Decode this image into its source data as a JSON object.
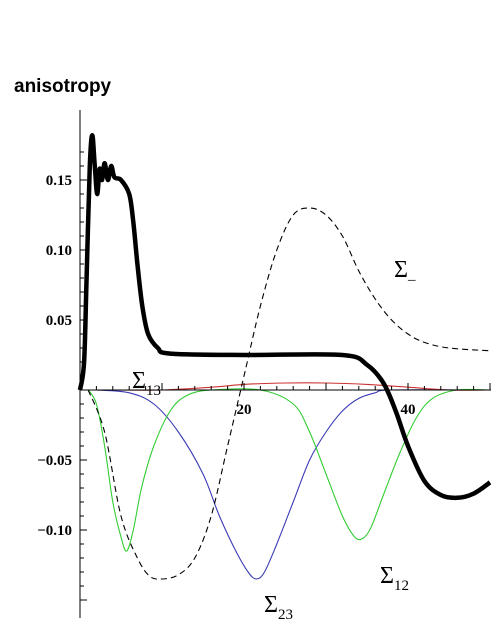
{
  "chart_data": {
    "type": "line",
    "title": "",
    "xlabel": "",
    "ylabel": "anisotropy",
    "xlim": [
      0,
      50
    ],
    "ylim": [
      -0.155,
      0.185
    ],
    "x_ticks": [
      20,
      40
    ],
    "y_ticks": [
      0.15,
      0.1,
      0.05,
      -0.05,
      -0.1
    ],
    "x_tick_labels": [
      "20",
      "40"
    ],
    "y_tick_labels": [
      "0.15",
      "0.10",
      "0.05",
      "−0.05",
      "−0.10"
    ],
    "grid": false,
    "series": [
      {
        "name": "",
        "color": "#000000",
        "style": "solid-thick",
        "points": [
          [
            0,
            0
          ],
          [
            0.5,
            0.02
          ],
          [
            0.8,
            0.08
          ],
          [
            1.2,
            0.16
          ],
          [
            1.5,
            0.182
          ],
          [
            1.8,
            0.16
          ],
          [
            2.1,
            0.14
          ],
          [
            2.4,
            0.158
          ],
          [
            2.7,
            0.15
          ],
          [
            3.0,
            0.162
          ],
          [
            3.4,
            0.15
          ],
          [
            3.8,
            0.16
          ],
          [
            4.2,
            0.152
          ],
          [
            5,
            0.15
          ],
          [
            6,
            0.14
          ],
          [
            6.5,
            0.12
          ],
          [
            7,
            0.09
          ],
          [
            7.6,
            0.06
          ],
          [
            8.3,
            0.04
          ],
          [
            9.5,
            0.03
          ],
          [
            11,
            0.026
          ],
          [
            20,
            0.025
          ],
          [
            32,
            0.025
          ],
          [
            35,
            0.018
          ],
          [
            37,
            0.005
          ],
          [
            38.5,
            -0.015
          ],
          [
            40,
            -0.04
          ],
          [
            42,
            -0.065
          ],
          [
            44,
            -0.075
          ],
          [
            46,
            -0.077
          ],
          [
            48,
            -0.074
          ],
          [
            50,
            -0.066
          ]
        ]
      },
      {
        "name": "Σ_",
        "color": "#000000",
        "style": "dashed",
        "points": [
          [
            1,
            0
          ],
          [
            3,
            -0.03
          ],
          [
            5,
            -0.09
          ],
          [
            7,
            -0.12
          ],
          [
            8.5,
            -0.133
          ],
          [
            10,
            -0.135
          ],
          [
            12,
            -0.132
          ],
          [
            14,
            -0.12
          ],
          [
            16,
            -0.09
          ],
          [
            18,
            -0.04
          ],
          [
            20,
            0.01
          ],
          [
            22,
            0.06
          ],
          [
            24,
            0.1
          ],
          [
            26,
            0.125
          ],
          [
            28,
            0.13
          ],
          [
            30,
            0.125
          ],
          [
            32,
            0.11
          ],
          [
            34,
            0.085
          ],
          [
            36,
            0.065
          ],
          [
            38,
            0.05
          ],
          [
            40,
            0.04
          ],
          [
            42,
            0.034
          ],
          [
            45,
            0.03
          ],
          [
            50,
            0.028
          ]
        ]
      },
      {
        "name": "Σ_13",
        "color": "#cc3333",
        "style": "solid",
        "points": [
          [
            4,
            0
          ],
          [
            10,
            0
          ],
          [
            16,
            0.002
          ],
          [
            20,
            0.004
          ],
          [
            25,
            0.005
          ],
          [
            30,
            0.005
          ],
          [
            35,
            0.004
          ],
          [
            40,
            0.002
          ],
          [
            45,
            0
          ],
          [
            50,
            0
          ]
        ]
      },
      {
        "name": "Σ_23",
        "color": "#3b3bb5",
        "style": "solid",
        "points": [
          [
            2,
            0
          ],
          [
            6,
            -0.002
          ],
          [
            9,
            -0.01
          ],
          [
            12,
            -0.03
          ],
          [
            15,
            -0.06
          ],
          [
            17,
            -0.09
          ],
          [
            19,
            -0.115
          ],
          [
            20.5,
            -0.13
          ],
          [
            21.5,
            -0.135
          ],
          [
            22.5,
            -0.13
          ],
          [
            24,
            -0.11
          ],
          [
            26,
            -0.08
          ],
          [
            28,
            -0.05
          ],
          [
            30,
            -0.03
          ],
          [
            32,
            -0.015
          ],
          [
            34,
            -0.006
          ],
          [
            36,
            -0.002
          ],
          [
            38,
            0
          ],
          [
            50,
            0
          ]
        ]
      },
      {
        "name": "Σ_12",
        "color": "#33cc33",
        "style": "solid",
        "points": [
          [
            1,
            0
          ],
          [
            2,
            -0.01
          ],
          [
            3,
            -0.04
          ],
          [
            4,
            -0.08
          ],
          [
            5,
            -0.105
          ],
          [
            5.7,
            -0.115
          ],
          [
            6.5,
            -0.1
          ],
          [
            7.5,
            -0.07
          ],
          [
            9,
            -0.04
          ],
          [
            11,
            -0.015
          ],
          [
            13,
            -0.004
          ],
          [
            16,
            0
          ],
          [
            22,
            0
          ],
          [
            26,
            -0.01
          ],
          [
            28,
            -0.03
          ],
          [
            30,
            -0.06
          ],
          [
            32,
            -0.09
          ],
          [
            33.5,
            -0.105
          ],
          [
            34.5,
            -0.106
          ],
          [
            35.5,
            -0.098
          ],
          [
            37,
            -0.075
          ],
          [
            39,
            -0.045
          ],
          [
            41,
            -0.02
          ],
          [
            43,
            -0.006
          ],
          [
            46,
            0
          ],
          [
            50,
            0
          ]
        ]
      }
    ],
    "annotations": [
      {
        "series": "Σ_",
        "base": "Σ",
        "sub": "–"
      },
      {
        "series": "Σ_13",
        "base": "Σ",
        "sub": "13"
      },
      {
        "series": "Σ_23",
        "base": "Σ",
        "sub": "23"
      },
      {
        "series": "Σ_12",
        "base": "Σ",
        "sub": "12"
      }
    ]
  }
}
